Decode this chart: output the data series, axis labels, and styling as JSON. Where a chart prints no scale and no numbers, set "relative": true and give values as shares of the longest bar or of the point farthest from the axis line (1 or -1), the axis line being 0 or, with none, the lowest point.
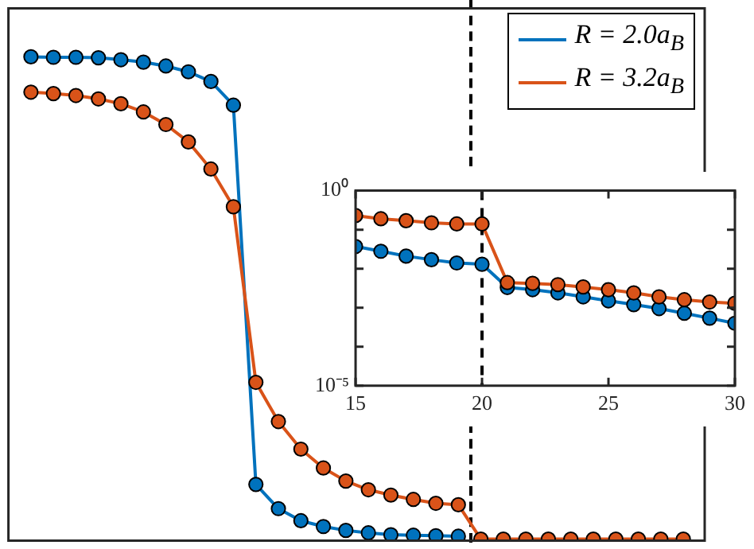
{
  "chart_data": [
    {
      "type": "line",
      "relative": true,
      "categories": [
        null,
        null,
        null,
        null,
        null,
        null,
        null,
        null,
        null,
        null,
        null,
        null,
        null,
        null,
        null,
        null,
        null,
        null,
        null,
        null,
        null,
        null,
        null,
        null,
        null,
        null,
        null,
        null,
        null,
        null
      ],
      "marker": "circle",
      "legend": "top right",
      "series": [
        {
          "name": "R = 2.0a$_{B}$",
          "color": "#0072bd",
          "values": [
            1.0,
            0.999,
            0.999,
            0.998,
            0.994,
            0.989,
            0.981,
            0.969,
            0.949,
            0.9,
            0.116,
            0.066,
            0.041,
            0.029,
            0.021,
            0.016,
            0.012,
            0.011,
            0.01,
            0.009,
            null,
            null,
            null,
            null,
            null,
            null,
            null,
            null,
            null,
            null
          ]
        },
        {
          "name": "R = 3.2a$_{B}$",
          "color": "#d95319",
          "values": [
            0.927,
            0.924,
            0.92,
            0.913,
            0.903,
            0.886,
            0.86,
            0.824,
            0.768,
            0.69,
            0.327,
            0.246,
            0.189,
            0.15,
            0.123,
            0.105,
            0.094,
            0.085,
            0.077,
            0.074,
            0.003,
            0.003,
            0.003,
            0.003,
            0.003,
            0.003,
            0.003,
            0.003,
            0.003,
            0.003
          ]
        }
      ]
    },
    {
      "type": "line",
      "x": [
        15,
        16,
        17,
        18,
        19,
        20,
        21,
        22,
        23,
        24,
        25,
        26,
        27,
        28,
        29,
        30
      ],
      "xlim": [
        15,
        30
      ],
      "xticks": [
        15,
        20,
        25,
        30
      ],
      "log": "y",
      "ylim": [
        1e-05,
        1
      ],
      "yticks": [
        {
          "value": 1,
          "label": "10⁰"
        },
        {
          "value": 0.1,
          "label": null
        },
        {
          "value": 0.01,
          "label": null
        },
        {
          "value": 0.001,
          "label": null
        },
        {
          "value": 0.0001,
          "label": null
        },
        {
          "value": 1e-05,
          "label": "10⁻⁵"
        }
      ],
      "marker": "circle",
      "series": [
        {
          "color": "#0072bd",
          "values": [
            0.037,
            0.028,
            0.021,
            0.017,
            0.014,
            0.013,
            0.0033,
            0.0029,
            0.0024,
            0.0019,
            0.0015,
            0.0012,
            0.00095,
            0.00072,
            0.00054,
            0.0004
          ]
        },
        {
          "color": "#d95319",
          "values": [
            0.23,
            0.19,
            0.17,
            0.15,
            0.14,
            0.14,
            0.0044,
            0.0042,
            0.0039,
            0.0034,
            0.0029,
            0.0024,
            0.0019,
            0.0016,
            0.0014,
            0.0013
          ]
        }
      ],
      "ref_lines": [
        {
          "axis": "x",
          "value": 20,
          "color": "#000000",
          "line_style": "dashed"
        }
      ]
    }
  ]
}
